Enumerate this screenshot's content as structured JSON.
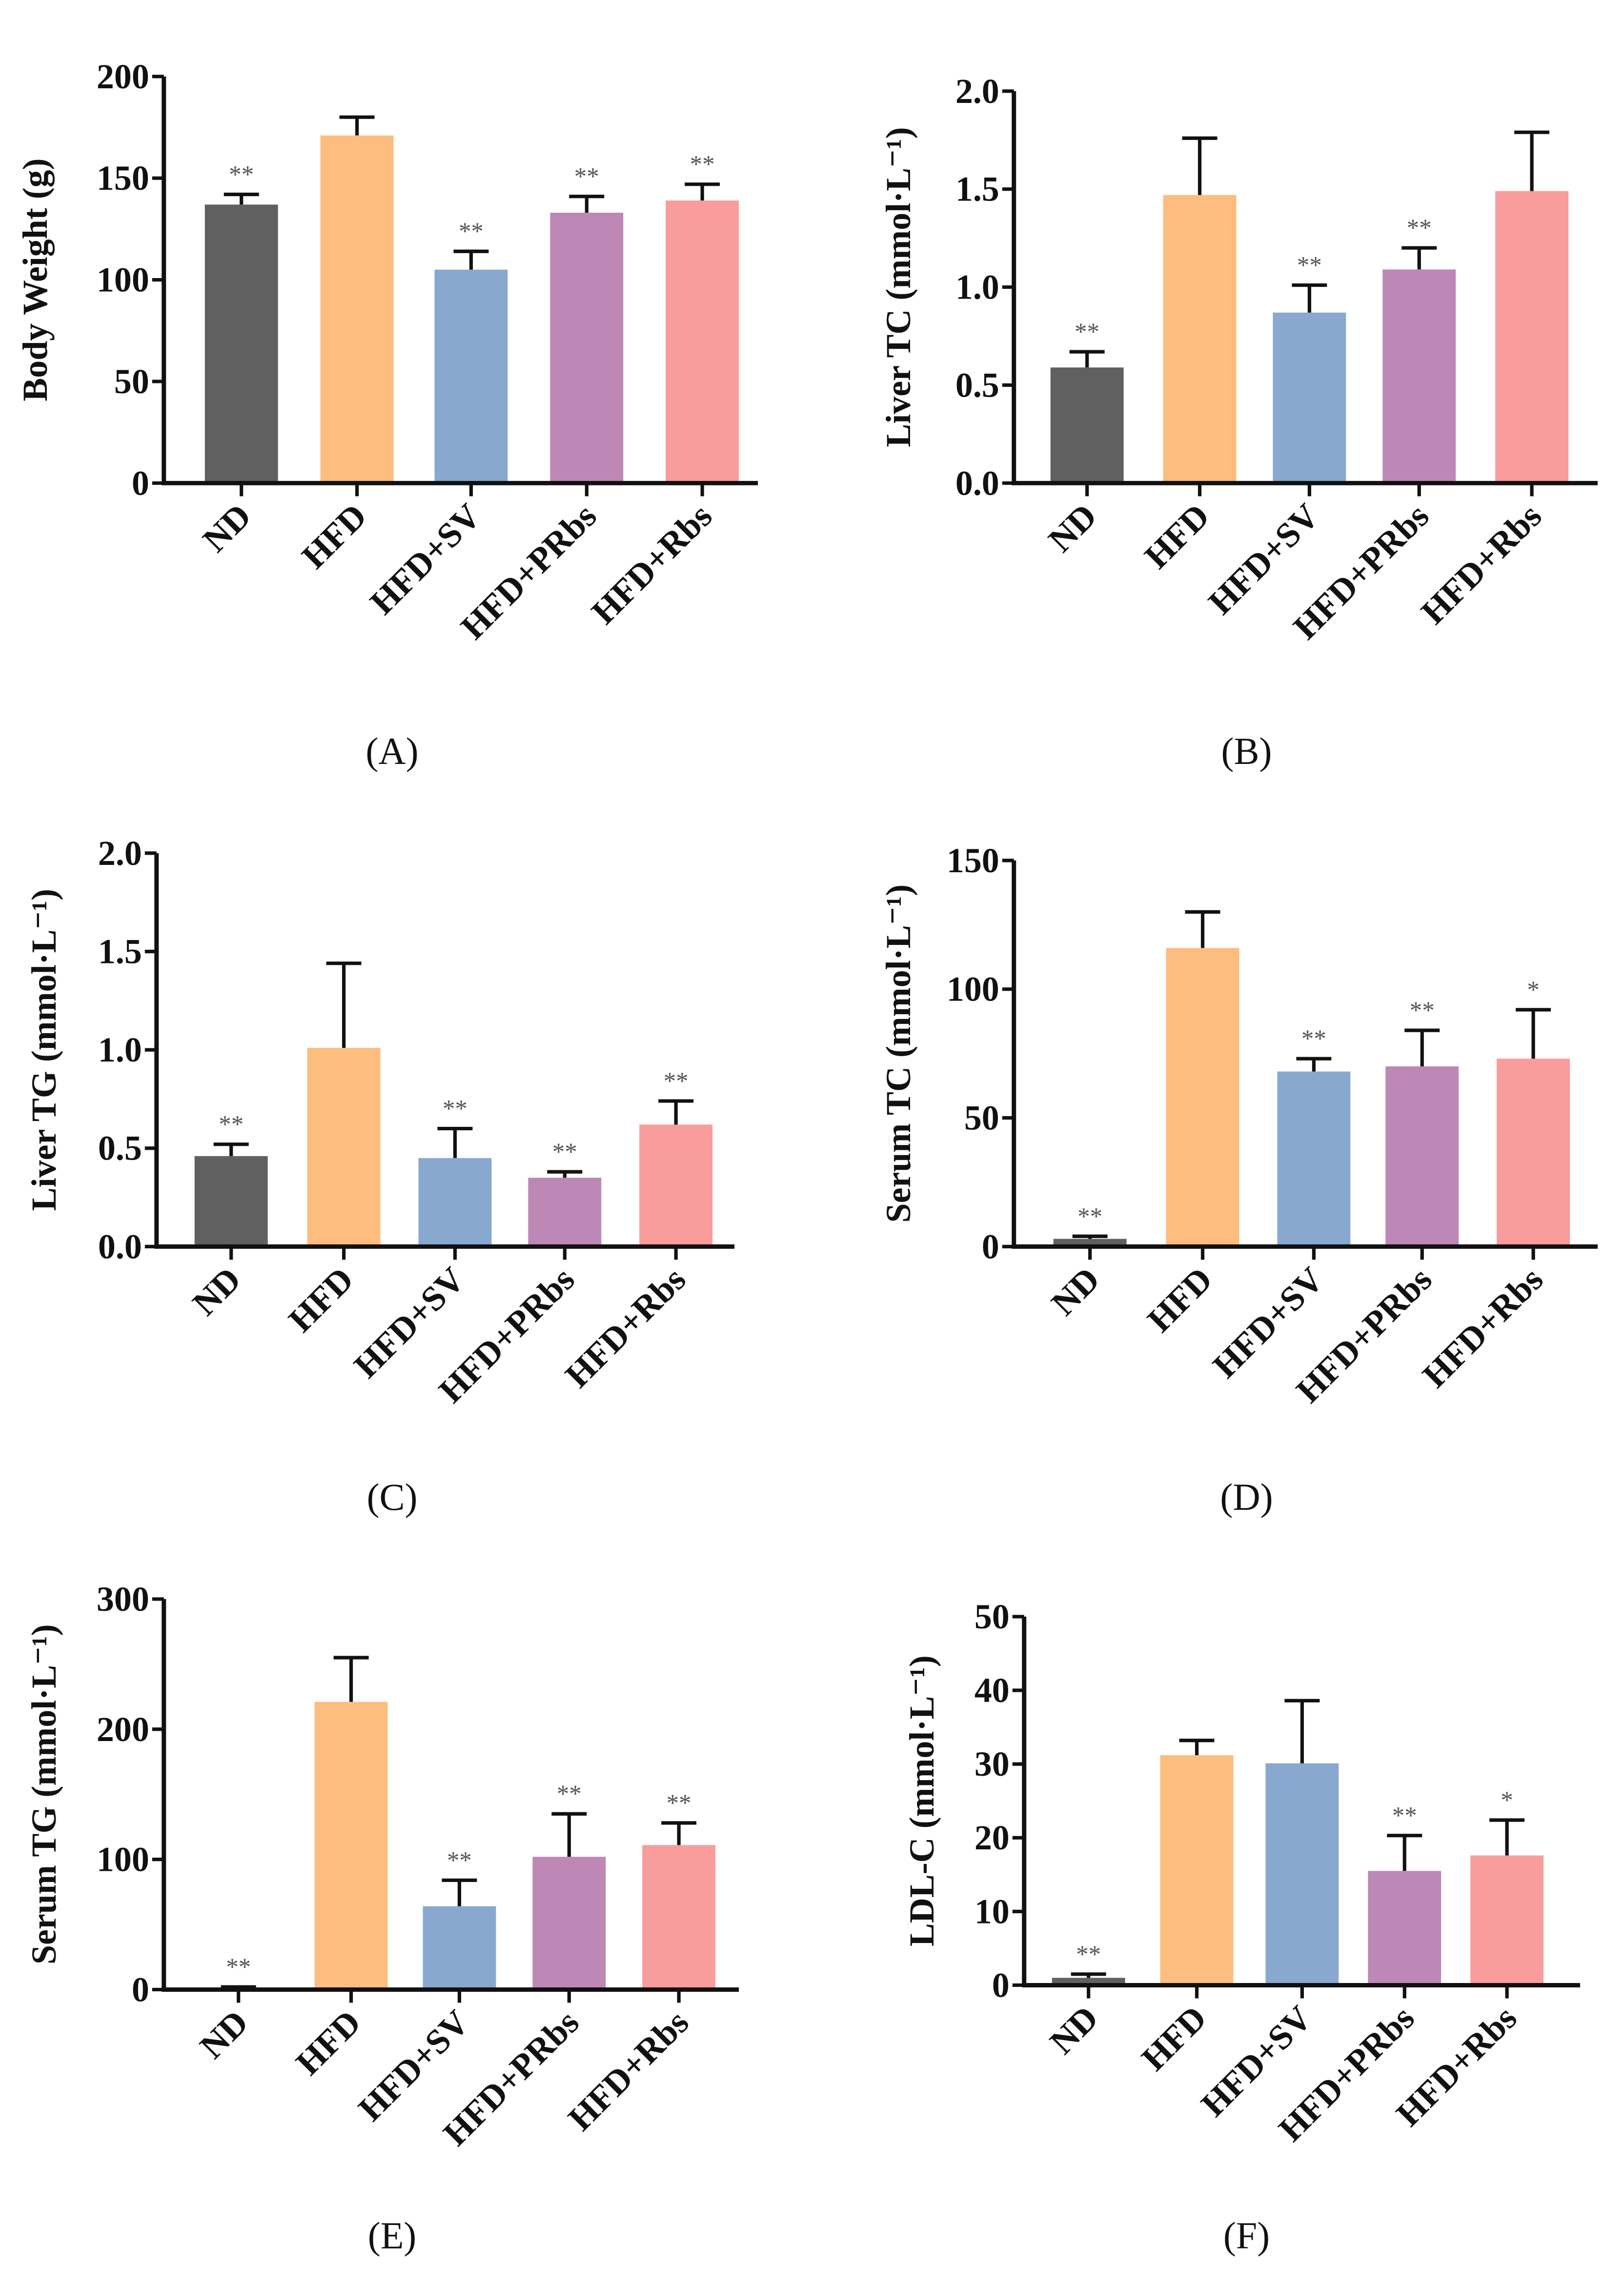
{
  "groups": [
    "ND",
    "HFD",
    "HFD+SV",
    "HFD+PRbs",
    "HFD+Rbs"
  ],
  "colors": [
    "#606060",
    "#FDBD7E",
    "#89A8D0",
    "#BE88B6",
    "#F99C9C"
  ],
  "chart_data": [
    {
      "type": "bar",
      "panel": "(A)",
      "ylabel": "Body Weight (g)",
      "ylim": [
        0,
        200
      ],
      "yticks": [
        "0",
        "50",
        "100",
        "150",
        "200"
      ],
      "ytick_values": [
        0,
        50,
        100,
        150,
        200
      ],
      "categories": [
        "ND",
        "HFD",
        "HFD+SV",
        "HFD+PRbs",
        "HFD+Rbs"
      ],
      "values": [
        137,
        171,
        105,
        133,
        139
      ],
      "errors": [
        5,
        9,
        9,
        8,
        8
      ],
      "significance": [
        "**",
        "",
        "**",
        "**",
        "**"
      ]
    },
    {
      "type": "bar",
      "panel": "(B)",
      "ylabel": "Liver TC (mmol·L⁻¹)",
      "ylim": [
        0,
        2.0
      ],
      "yticks": [
        "0.0",
        "0.5",
        "1.0",
        "1.5",
        "2.0"
      ],
      "ytick_values": [
        0,
        0.5,
        1.0,
        1.5,
        2.0
      ],
      "categories": [
        "ND",
        "HFD",
        "HFD+SV",
        "HFD+PRbs",
        "HFD+Rbs"
      ],
      "values": [
        0.59,
        1.47,
        0.87,
        1.09,
        1.49
      ],
      "errors": [
        0.08,
        0.29,
        0.14,
        0.11,
        0.3
      ],
      "significance": [
        "**",
        "",
        "**",
        "**",
        ""
      ]
    },
    {
      "type": "bar",
      "panel": "(C)",
      "ylabel": "Liver TG (mmol·L⁻¹)",
      "ylim": [
        0,
        2.0
      ],
      "yticks": [
        "0.0",
        "0.5",
        "1.0",
        "1.5",
        "2.0"
      ],
      "ytick_values": [
        0,
        0.5,
        1.0,
        1.5,
        2.0
      ],
      "categories": [
        "ND",
        "HFD",
        "HFD+SV",
        "HFD+PRbs",
        "HFD+Rbs"
      ],
      "values": [
        0.46,
        1.01,
        0.45,
        0.35,
        0.62
      ],
      "errors": [
        0.06,
        0.43,
        0.15,
        0.03,
        0.12
      ],
      "significance": [
        "**",
        "",
        "**",
        "**",
        "**"
      ]
    },
    {
      "type": "bar",
      "panel": "(D)",
      "ylabel": "Serum TC (mmol·L⁻¹)",
      "ylim": [
        0,
        150
      ],
      "yticks": [
        "0",
        "50",
        "100",
        "150"
      ],
      "ytick_values": [
        0,
        50,
        100,
        150
      ],
      "categories": [
        "ND",
        "HFD",
        "HFD+SV",
        "HFD+PRbs",
        "HFD+Rbs"
      ],
      "values": [
        3,
        116,
        68,
        70,
        73
      ],
      "errors": [
        1,
        14,
        5,
        14,
        19
      ],
      "significance": [
        "**",
        "",
        "**",
        "**",
        "*"
      ]
    },
    {
      "type": "bar",
      "panel": "(E)",
      "ylabel": "Serum TG (mmol·L⁻¹)",
      "ylim": [
        0,
        300
      ],
      "yticks": [
        "0",
        "100",
        "200",
        "300"
      ],
      "ytick_values": [
        0,
        100,
        200,
        300
      ],
      "categories": [
        "ND",
        "HFD",
        "HFD+SV",
        "HFD+PRbs",
        "HFD+Rbs"
      ],
      "values": [
        1,
        221,
        64,
        102,
        111
      ],
      "errors": [
        1,
        34,
        20,
        33,
        17
      ],
      "significance": [
        "**",
        "",
        "**",
        "**",
        "**"
      ]
    },
    {
      "type": "bar",
      "panel": "(F)",
      "ylabel": "LDL-C (mmol·L⁻¹)",
      "ylim": [
        0,
        50
      ],
      "yticks": [
        "0",
        "10",
        "20",
        "30",
        "40",
        "50"
      ],
      "ytick_values": [
        0,
        10,
        20,
        30,
        40,
        50
      ],
      "categories": [
        "ND",
        "HFD",
        "HFD+SV",
        "HFD+PRbs",
        "HFD+Rbs"
      ],
      "values": [
        1,
        31.2,
        30.1,
        15.5,
        17.6
      ],
      "errors": [
        0.5,
        2,
        8.5,
        4.8,
        4.8
      ],
      "significance": [
        "**",
        "",
        "",
        "**",
        "*"
      ]
    }
  ]
}
